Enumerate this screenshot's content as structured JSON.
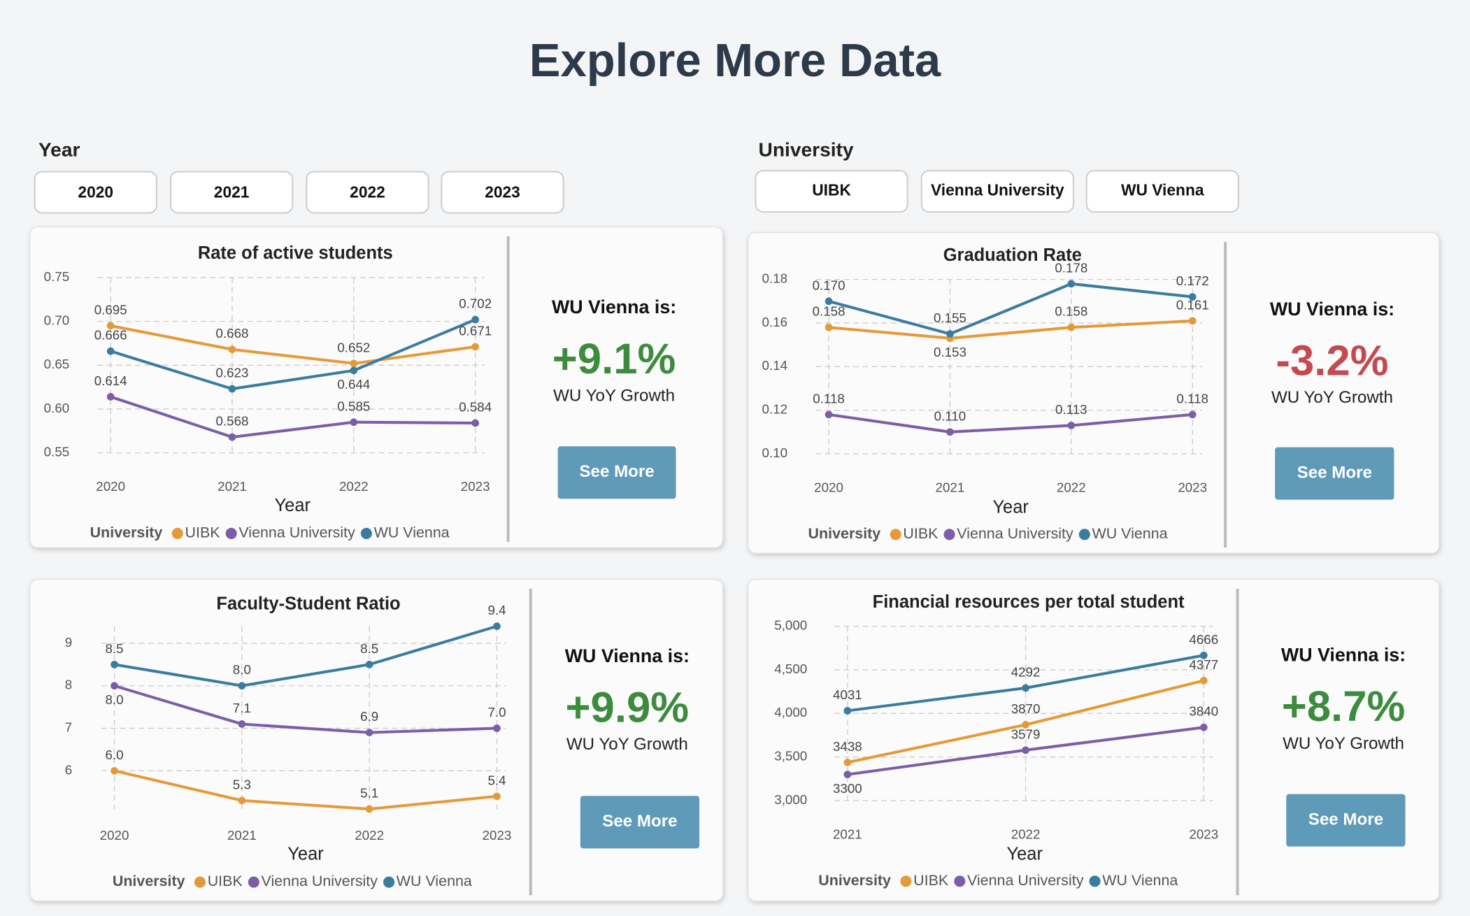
{
  "header": {
    "title": "Explore More Data"
  },
  "filters": {
    "year": {
      "label": "Year",
      "options": [
        "2020",
        "2021",
        "2022",
        "2023"
      ]
    },
    "university": {
      "label": "University",
      "options": [
        "UIBK",
        "Vienna University",
        "WU Vienna"
      ]
    }
  },
  "chart_data": [
    {
      "type": "line",
      "title": "Rate of active students",
      "x_label": "Year",
      "legend_title": "University",
      "categories": [
        "2020",
        "2021",
        "2022",
        "2023"
      ],
      "ylim": [
        0.55,
        0.75
      ],
      "yticks": [
        0.55,
        {
          "value": 0.6,
          "label": "0.60"
        },
        0.65,
        {
          "value": 0.7,
          "label": "0.70"
        },
        0.75
      ],
      "grid": true,
      "series": [
        {
          "name": "UIBK",
          "color": "#e59a3a",
          "values": [
            0.695,
            0.668,
            0.652,
            0.671
          ]
        },
        {
          "name": "Vienna University",
          "color": "#7b5ea7",
          "values": [
            0.614,
            0.568,
            0.585,
            0.584
          ]
        },
        {
          "name": "WU Vienna",
          "color": "#3a7ca0",
          "values": [
            0.666,
            0.623,
            0.644,
            0.702
          ]
        }
      ]
    },
    {
      "type": "line",
      "title": "Graduation Rate",
      "x_label": "Year",
      "legend_title": "University",
      "categories": [
        "2020",
        "2021",
        "2022",
        "2023"
      ],
      "ylim": [
        0.1,
        0.18
      ],
      "yticks": [
        {
          "value": 0.1,
          "label": "0.10"
        },
        0.12,
        0.14,
        0.16,
        0.18
      ],
      "grid": true,
      "series": [
        {
          "name": "UIBK",
          "color": "#e59a3a",
          "values": [
            0.158,
            0.153,
            0.158,
            0.161
          ]
        },
        {
          "name": "Vienna University",
          "color": "#7b5ea7",
          "values": [
            0.118,
            0.11,
            0.113,
            0.118
          ],
          "value_labels": [
            "0.118",
            "0.110",
            "0.113",
            "0.118"
          ]
        },
        {
          "name": "WU Vienna",
          "color": "#3a7ca0",
          "values": [
            0.17,
            0.155,
            0.178,
            0.172
          ],
          "value_labels": [
            "0.170",
            "0.155",
            "0.178",
            "0.172"
          ]
        }
      ]
    },
    {
      "type": "line",
      "title": "Faculty-Student Ratio",
      "x_label": "Year",
      "legend_title": "University",
      "categories": [
        "2020",
        "2021",
        "2022",
        "2023"
      ],
      "ylim": [
        5.1,
        9.4
      ],
      "yticks": [
        6,
        7,
        8,
        9
      ],
      "grid": true,
      "series": [
        {
          "name": "UIBK",
          "color": "#e59a3a",
          "values": [
            6.0,
            5.3,
            5.1,
            5.4
          ],
          "value_labels": [
            "6.0",
            "5.3",
            "5.1",
            "5.4"
          ]
        },
        {
          "name": "Vienna University",
          "color": "#7b5ea7",
          "values": [
            8.0,
            7.1,
            6.9,
            7.0
          ],
          "value_labels": [
            "8.0",
            "7.1",
            "6.9",
            "7.0"
          ]
        },
        {
          "name": "WU Vienna",
          "color": "#3a7ca0",
          "values": [
            8.5,
            8.0,
            8.5,
            9.4
          ],
          "value_labels": [
            "8.5",
            "8.0",
            "8.5",
            "9.4"
          ]
        }
      ]
    },
    {
      "type": "line",
      "title": "Financial resources per total student",
      "x_label": "Year",
      "legend_title": "University",
      "categories": [
        "2021",
        "2022",
        "2023"
      ],
      "ylim": [
        3000,
        5000
      ],
      "yticks": [
        {
          "value": 3000,
          "label": "3,000"
        },
        {
          "value": 3500,
          "label": "3,500"
        },
        {
          "value": 4000,
          "label": "4,000"
        },
        {
          "value": 4500,
          "label": "4,500"
        },
        {
          "value": 5000,
          "label": "5,000"
        }
      ],
      "grid": true,
      "series": [
        {
          "name": "UIBK",
          "color": "#e59a3a",
          "values": [
            3438,
            3870,
            4377
          ]
        },
        {
          "name": "Vienna University",
          "color": "#7b5ea7",
          "values": [
            3300,
            3579,
            3840
          ]
        },
        {
          "name": "WU Vienna",
          "color": "#3a7ca0",
          "values": [
            4031,
            4292,
            4666
          ]
        }
      ]
    }
  ],
  "panels": [
    {
      "heading": "WU Vienna is:",
      "value": "+9.1%",
      "color": "#3d8b3d",
      "caption": "WU YoY Growth",
      "button": "See More"
    },
    {
      "heading": "WU Vienna is:",
      "value": "-3.2%",
      "color": "#c44a4f",
      "caption": "WU YoY Growth",
      "button": "See More"
    },
    {
      "heading": "WU Vienna is:",
      "value": "+9.9%",
      "color": "#3d8b3d",
      "caption": "WU YoY Growth",
      "button": "See More"
    },
    {
      "heading": "WU Vienna is:",
      "value": "+8.7%",
      "color": "#3d8b3d",
      "caption": "WU YoY Growth",
      "button": "See More"
    }
  ]
}
